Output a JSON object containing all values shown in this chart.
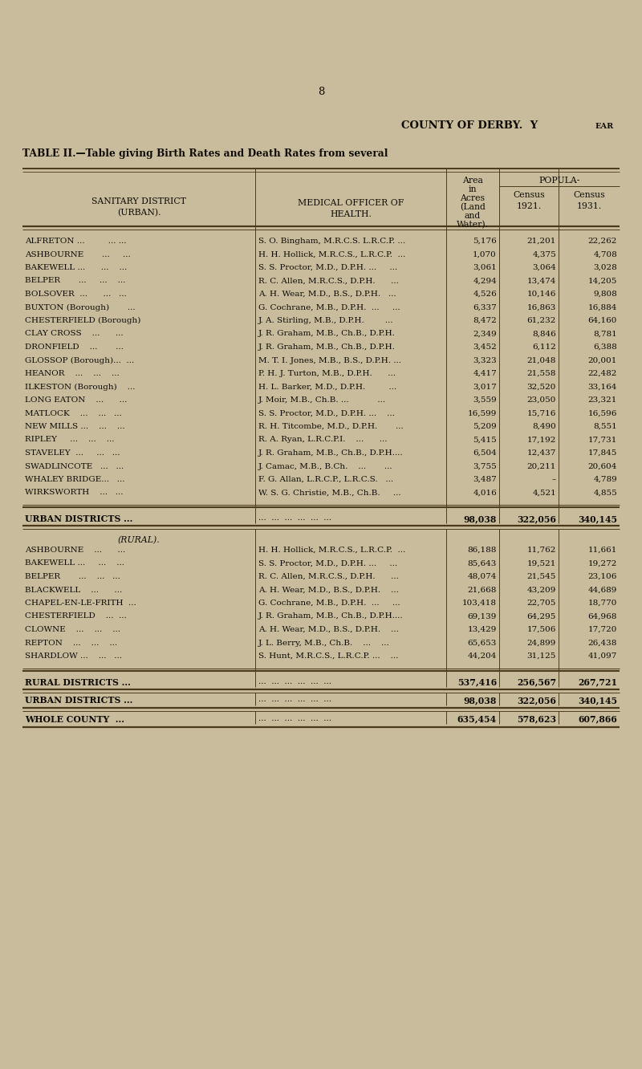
{
  "page_number": "8",
  "county_title": "COUNTY OF DERBY.",
  "county_title_year": "Y",
  "county_title_ear": "EAR",
  "subtitle": "TABLE II.—Table giving Birth Rates and Death Rates from several",
  "header_col1_line1": "SANITARY DISTRICT",
  "header_col1_line2": "(URBAN).",
  "header_col2_line1": "MEDICAL OFFICER OF",
  "header_col2_line2": "HEALTH.",
  "header_col3_lines": [
    "Area",
    "in",
    "Acres",
    "(Land",
    "and",
    "Water)."
  ],
  "header_col4_group": "POPULA-",
  "header_col4_line1": "Census",
  "header_col4_line2": "1921.",
  "header_col5_line1": "Census",
  "header_col5_line2": "1931.",
  "urban_rows": [
    [
      "ALFRETON ...         ... ...",
      "S. O. Bingham, M.R.C.S. L.R.C.P. ...",
      "5,176",
      "21,201",
      "22,262"
    ],
    [
      "ASHBOURNE       ...     ...",
      "H. H. Hollick, M.R.C.S., L.R.C.P.  ...",
      "1,070",
      "4,375",
      "4,708"
    ],
    [
      "BAKEWELL ...      ...    ...",
      "S. S. Proctor, M.D., D.P.H. ...     ...",
      "3,061",
      "3,064",
      "3,028"
    ],
    [
      "BELPER       ...     ...    ...",
      "R. C. Allen, M.R.C.S., D.P.H.      ...",
      "4,294",
      "13,474",
      "14,205"
    ],
    [
      "BOLSOVER  ...      ...   ...",
      "A. H. Wear, M.D., B.S., D.P.H.   ...",
      "4,526",
      "10,146",
      "9,808"
    ],
    [
      "BUXTON (Borough)       ...",
      "G. Cochrane, M.B., D.P.H.  ...     ...",
      "6,337",
      "16,863",
      "16,884"
    ],
    [
      "CHESTERFIELD (Borough)",
      "J. A. Stirling, M.B., D.P.H.        ...",
      "8,472",
      "61,232",
      "64,160"
    ],
    [
      "CLAY CROSS    ...      ...",
      "J. R. Graham, M.B., Ch.B., D.P.H.",
      "2,349",
      "8,846",
      "8,781"
    ],
    [
      "DRONFIELD    ...       ...",
      "J. R. Graham, M.B., Ch.B., D.P.H.",
      "3,452",
      "6,112",
      "6,388"
    ],
    [
      "GLOSSOP (Borough)...  ...",
      "M. T. I. Jones, M.B., B.S., D.P.H. ...",
      "3,323",
      "21,048",
      "20,001"
    ],
    [
      "HEANOR    ...    ...    ...",
      "P. H. J. Turton, M.B., D.P.H.      ...",
      "4,417",
      "21,558",
      "22,482"
    ],
    [
      "ILKESTON (Borough)    ...",
      "H. L. Barker, M.D., D.P.H.         ...",
      "3,017",
      "32,520",
      "33,164"
    ],
    [
      "LONG EATON    ...      ...",
      "J. Moir, M.B., Ch.B. ...           ...",
      "3,559",
      "23,050",
      "23,321"
    ],
    [
      "MATLOCK    ...    ...   ...",
      "S. S. Proctor, M.D., D.P.H. ...    ...",
      "16,599",
      "15,716",
      "16,596"
    ],
    [
      "NEW MILLS ...    ...    ...",
      "R. H. Titcombe, M.D., D.P.H.       ...",
      "5,209",
      "8,490",
      "8,551"
    ],
    [
      "RIPLEY     ...    ...    ...",
      "R. A. Ryan, L.R.C.P.I.    ...      ...",
      "5,415",
      "17,192",
      "17,731"
    ],
    [
      "STAVELEY  ...     ...   ...",
      "J. R. Graham, M.B., Ch.B., D.P.H....",
      "6,504",
      "12,437",
      "17,845"
    ],
    [
      "SWADLINCOTE   ...   ...",
      "J. Camac, M.B., B.Ch.    ...       ...",
      "3,755",
      "20,211",
      "20,604"
    ],
    [
      "WHALEY BRIDGE...   ...",
      "F. G. Allan, L.R.C.P., L.R.C.S.   ...",
      "3,487",
      "–",
      "4,789"
    ],
    [
      "WIRKSWORTH    ...   ...",
      "W. S. G. Christie, M.B., Ch.B.     ...",
      "4,016",
      "4,521",
      "4,855"
    ]
  ],
  "urban_total": [
    "URBAN DISTRICTS ...",
    "...  ...  ...  ...  ...  ...",
    "98,038",
    "322,056",
    "340,145"
  ],
  "rural_header": "(RURAL).",
  "rural_rows": [
    [
      "ASHBOURNE    ...      ...",
      "H. H. Hollick, M.R.C.S., L.R.C.P.  ...",
      "86,188",
      "11,762",
      "11,661"
    ],
    [
      "BAKEWELL ...     ...    ...",
      "S. S. Proctor, M.D., D.P.H. ...     ...",
      "85,643",
      "19,521",
      "19,272"
    ],
    [
      "BELPER       ...    ...   ...",
      "R. C. Allen, M.R.C.S., D.P.H.      ...",
      "48,074",
      "21,545",
      "23,106"
    ],
    [
      "BLACKWELL    ...      ...",
      "A. H. Wear, M.D., B.S., D.P.H.    ...",
      "21,668",
      "43,209",
      "44,689"
    ],
    [
      "CHAPEL-EN-LE-FRITH  ...",
      "G. Cochrane, M.B., D.P.H.  ...     ...",
      "103,418",
      "22,705",
      "18,770"
    ],
    [
      "CHESTERFIELD    ...  ...",
      "J. R. Graham, M.B., Ch.B., D.P.H....",
      "69,139",
      "64,295",
      "64,968"
    ],
    [
      "CLOWNE    ...    ...    ...",
      "A. H. Wear, M.D., B.S., D.P.H.    ...",
      "13,429",
      "17,506",
      "17,720"
    ],
    [
      "REPTON    ...    ...    ...",
      "J. L. Berry, M.B., Ch.B.    ...    ...",
      "65,653",
      "24,899",
      "26,438"
    ],
    [
      "SHARDLOW ...    ...   ...",
      "S. Hunt, M.R.C.S., L.R.C.P. ...    ...",
      "44,204",
      "31,125",
      "41,097"
    ]
  ],
  "rural_total": [
    "RURAL DISTRICTS ...",
    "...  ...  ...  ...  ...  ...",
    "537,416",
    "256,567",
    "267,721"
  ],
  "urban_total2": [
    "URBAN DISTRICTS ...",
    "...  ...  ...  ...  ...  ...",
    "98,038",
    "322,056",
    "340,145"
  ],
  "whole_county": [
    "WHOLE COUNTY  ...",
    "...  ...  ...  ...  ...  ...",
    "635,454",
    "578,623",
    "607,866"
  ],
  "bg_color": "#c8bc9d",
  "text_color": "#100c04",
  "line_color": "#4a3a1a"
}
